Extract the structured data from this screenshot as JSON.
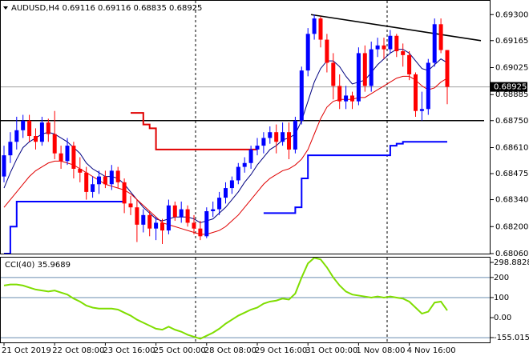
{
  "chart_data": [
    {
      "type": "candlestick",
      "title": "AUDUSD,H4  0.69116 0.69116 0.68835 0.68925",
      "categories": [
        "21 Oct 2019",
        null,
        null,
        null,
        null,
        null,
        null,
        null,
        "22 Oct 08:00",
        null,
        null,
        null,
        null,
        null,
        null,
        null,
        "23 Oct 16:00",
        null,
        null,
        null,
        null,
        null,
        null,
        null,
        "25 Oct 00:00",
        null,
        null,
        null,
        null,
        null,
        null,
        null,
        "28 Oct 08:00",
        null,
        null,
        null,
        null,
        null,
        null,
        null,
        "29 Oct 16:00",
        null,
        null,
        null,
        null,
        null,
        null,
        null,
        "31 Oct 00:00",
        null,
        null,
        null,
        null,
        null,
        null,
        null,
        "1 Nov 08:00",
        null,
        null,
        null,
        null,
        null,
        null,
        null,
        "4 Nov 16:00",
        null,
        null,
        null,
        null,
        null,
        null
      ],
      "open": [
        0.6846,
        0.6857,
        0.6864,
        0.687,
        0.6875,
        0.6867,
        0.6864,
        0.6874,
        0.6868,
        0.6858,
        0.6854,
        0.6862,
        0.685,
        0.6848,
        0.6838,
        0.6842,
        0.6846,
        0.6842,
        0.6849,
        0.6843,
        0.6832,
        0.683,
        0.6821,
        0.6826,
        0.6819,
        0.6822,
        0.6818,
        0.6831,
        0.6825,
        0.6829,
        0.6822,
        0.6819,
        0.6815,
        0.6828,
        0.6829,
        0.6835,
        0.684,
        0.6844,
        0.6851,
        0.6853,
        0.686,
        0.6862,
        0.6866,
        0.6869,
        0.6864,
        0.6869,
        0.686,
        0.6875,
        0.6901,
        0.692,
        0.6928,
        0.6917,
        0.6905,
        0.6893,
        0.6885,
        0.6888,
        0.6885,
        0.691,
        0.6893,
        0.6912,
        0.6914,
        0.6912,
        0.6919,
        0.6911,
        0.6909,
        0.6899,
        0.688,
        0.6881,
        0.6905,
        0.6925,
        0.69116
      ],
      "high": [
        0.6862,
        0.6869,
        0.6877,
        0.6878,
        0.6878,
        0.6871,
        0.6877,
        0.6876,
        0.688,
        0.6862,
        0.6866,
        0.6864,
        0.6856,
        0.6851,
        0.6846,
        0.6849,
        0.6849,
        0.6852,
        0.6851,
        0.6845,
        0.6836,
        0.6834,
        0.6829,
        0.6828,
        0.6825,
        0.6824,
        0.6834,
        0.6833,
        0.6833,
        0.6831,
        0.6826,
        0.6823,
        0.683,
        0.6833,
        0.6838,
        0.6843,
        0.6846,
        0.6853,
        0.6856,
        0.6862,
        0.6866,
        0.6869,
        0.6872,
        0.6873,
        0.6874,
        0.6874,
        0.6877,
        0.6903,
        0.6923,
        0.693,
        0.6929,
        0.692,
        0.691,
        0.6899,
        0.6893,
        0.689,
        0.6913,
        0.6914,
        0.6916,
        0.6918,
        0.6918,
        0.6922,
        0.692,
        0.6915,
        0.6911,
        0.69,
        0.689,
        0.6907,
        0.6928,
        0.6928,
        0.69116
      ],
      "low": [
        0.6843,
        0.6853,
        0.686,
        0.6866,
        0.6864,
        0.686,
        0.6862,
        0.6864,
        0.6855,
        0.685,
        0.6852,
        0.6845,
        0.6843,
        0.6834,
        0.6835,
        0.6837,
        0.684,
        0.6839,
        0.684,
        0.6827,
        0.6826,
        0.6812,
        0.6817,
        0.6815,
        0.6813,
        0.6811,
        0.6816,
        0.6823,
        0.6822,
        0.682,
        0.6816,
        0.6813,
        0.6814,
        0.6825,
        0.6826,
        0.6832,
        0.6837,
        0.6842,
        0.6848,
        0.685,
        0.6857,
        0.6858,
        0.6863,
        0.6858,
        0.6862,
        0.6855,
        0.6858,
        0.6873,
        0.6898,
        0.6917,
        0.6913,
        0.69,
        0.6886,
        0.6881,
        0.6881,
        0.6881,
        0.6883,
        0.689,
        0.689,
        0.6908,
        0.6907,
        0.691,
        0.6908,
        0.6903,
        0.6896,
        0.6877,
        0.6875,
        0.6878,
        0.6903,
        0.691,
        0.68835
      ],
      "close": [
        0.6857,
        0.6864,
        0.687,
        0.6875,
        0.6867,
        0.6864,
        0.6874,
        0.6868,
        0.6858,
        0.6854,
        0.6862,
        0.685,
        0.6848,
        0.6838,
        0.6842,
        0.6846,
        0.6842,
        0.6849,
        0.6843,
        0.6832,
        0.683,
        0.6821,
        0.6826,
        0.6819,
        0.6822,
        0.6818,
        0.6831,
        0.6825,
        0.6829,
        0.6822,
        0.6819,
        0.6815,
        0.6828,
        0.6829,
        0.6835,
        0.684,
        0.6844,
        0.6851,
        0.6853,
        0.686,
        0.6862,
        0.6866,
        0.6869,
        0.6864,
        0.6869,
        0.686,
        0.6875,
        0.6901,
        0.692,
        0.6928,
        0.6917,
        0.6905,
        0.6893,
        0.6885,
        0.6888,
        0.6885,
        0.691,
        0.6893,
        0.6912,
        0.6914,
        0.6912,
        0.6919,
        0.6911,
        0.6909,
        0.6899,
        0.688,
        0.6881,
        0.6905,
        0.6925,
        0.69116,
        0.68925
      ],
      "up_color": "#0000ff",
      "down_color": "#ff0000",
      "lines": [
        {
          "color": "#000080",
          "values": [
            0.684,
            0.6848,
            0.6855,
            0.6861,
            0.6864,
            0.6866,
            0.6868,
            0.6869,
            0.6868,
            0.6866,
            0.6864,
            0.6861,
            0.6858,
            0.6853,
            0.685,
            0.6848,
            0.6846,
            0.6846,
            0.6845,
            0.6842,
            0.6838,
            0.6834,
            0.683,
            0.6827,
            0.6824,
            0.6823,
            0.6824,
            0.6825,
            0.6825,
            0.6825,
            0.6824,
            0.6822,
            0.6823,
            0.6824,
            0.6827,
            0.683,
            0.6834,
            0.6838,
            0.6843,
            0.6847,
            0.6852,
            0.6856,
            0.686,
            0.6862,
            0.6865,
            0.6866,
            0.6868,
            0.6875,
            0.6885,
            0.6895,
            0.6902,
            0.6906,
            0.6906,
            0.6903,
            0.6898,
            0.6894,
            0.6895,
            0.6896,
            0.69,
            0.6904,
            0.6907,
            0.691,
            0.6912,
            0.6912,
            0.691,
            0.6906,
            0.6902,
            0.6901,
            0.6904,
            0.6907,
            0.6905
          ]
        },
        {
          "color": "#e00000",
          "values": [
            0.683,
            0.6834,
            0.6838,
            0.6842,
            0.6846,
            0.6849,
            0.6851,
            0.6853,
            0.6854,
            0.6854,
            0.6853,
            0.6852,
            0.685,
            0.6848,
            0.6846,
            0.6844,
            0.6842,
            0.6841,
            0.684,
            0.6839,
            0.6837,
            0.6834,
            0.6831,
            0.6828,
            0.6825,
            0.6822,
            0.6821,
            0.682,
            0.6819,
            0.6818,
            0.6817,
            0.6816,
            0.6816,
            0.6817,
            0.6818,
            0.682,
            0.6823,
            0.6826,
            0.683,
            0.6834,
            0.6838,
            0.6842,
            0.6845,
            0.6847,
            0.6849,
            0.685,
            0.6852,
            0.6855,
            0.686,
            0.6868,
            0.6876,
            0.6882,
            0.6885,
            0.6886,
            0.6886,
            0.6886,
            0.6887,
            0.6887,
            0.6889,
            0.6891,
            0.6893,
            0.6895,
            0.6897,
            0.6898,
            0.6898,
            0.6896,
            0.6893,
            0.6891,
            0.6892,
            0.6895,
            0.6897
          ]
        },
        {
          "color": "#0000ff",
          "step": true,
          "values": [
            0.6806,
            0.682,
            0.6833,
            0.6833,
            0.6833,
            0.6833,
            0.6833,
            0.6833,
            0.6833,
            0.6833,
            0.6833,
            0.6833,
            0.6833,
            0.6833,
            0.6833,
            0.6833,
            0.6833,
            0.6833,
            0.6833,
            0.6833,
            null,
            null,
            null,
            null,
            null,
            null,
            null,
            null,
            null,
            null,
            null,
            null,
            null,
            null,
            null,
            null,
            null,
            null,
            null,
            null,
            null,
            0.6827,
            0.6827,
            0.6827,
            0.6827,
            0.6827,
            0.683,
            0.6845,
            0.6857,
            0.6857,
            0.6857,
            0.6857,
            0.6857,
            0.6857,
            0.6857,
            0.6857,
            0.6857,
            0.6857,
            0.6857,
            0.6857,
            0.6857,
            0.6862,
            0.6863,
            0.6864,
            0.6864,
            0.6864,
            0.6864,
            0.6864,
            0.6864,
            0.6864,
            0.6864
          ]
        },
        {
          "color": "#e00000",
          "step": true,
          "values": [
            null,
            null,
            null,
            null,
            null,
            null,
            null,
            null,
            null,
            null,
            null,
            null,
            null,
            null,
            null,
            null,
            null,
            null,
            null,
            null,
            0.6879,
            0.6879,
            0.6873,
            0.6871,
            0.686,
            0.686,
            0.686,
            0.686,
            0.686,
            0.686,
            0.686,
            0.686,
            0.686,
            0.686,
            0.686,
            0.686,
            0.686,
            0.686,
            0.686,
            0.686,
            0.686,
            null,
            null,
            null,
            null,
            null,
            null,
            null,
            null,
            null,
            null,
            null,
            null,
            null,
            null,
            null,
            null,
            null,
            null,
            null,
            null,
            null,
            null,
            null,
            null,
            null,
            null,
            null,
            null,
            null,
            null
          ]
        }
      ],
      "trendlines": [
        {
          "color": "#000000",
          "values": [
            0.6875,
            0.6875
          ]
        },
        {
          "color": "#000000",
          "values": [
            0.693,
            0.69165
          ]
        }
      ],
      "current_price": 0.68925,
      "ylim": [
        0.6806,
        0.69355
      ],
      "yticks": [
        {
          "value": 0.693,
          "label": "0.69300"
        },
        {
          "value": 0.69165,
          "label": "0.69165"
        },
        {
          "value": 0.69025,
          "label": "0.69025"
        },
        {
          "value": 0.68885,
          "label": "0.68885"
        },
        {
          "value": 0.6875,
          "label": "0.68750"
        },
        {
          "value": 0.6861,
          "label": "0.68610"
        },
        {
          "value": 0.68475,
          "label": "0.68475"
        },
        {
          "value": 0.6834,
          "label": "0.68340"
        },
        {
          "value": 0.682,
          "label": "0.68200"
        },
        {
          "value": 0.6806,
          "label": "0.68060"
        }
      ]
    },
    {
      "type": "line",
      "title": "CCI(40) 35.9689",
      "values": [
        160,
        165,
        165,
        160,
        150,
        140,
        135,
        130,
        135,
        125,
        115,
        95,
        80,
        60,
        50,
        45,
        45,
        45,
        40,
        25,
        10,
        -10,
        -25,
        -40,
        -55,
        -60,
        -45,
        -60,
        -70,
        -85,
        -95,
        -105,
        -90,
        -75,
        -55,
        -30,
        -10,
        10,
        25,
        40,
        50,
        70,
        80,
        85,
        95,
        90,
        120,
        200,
        270,
        298,
        290,
        250,
        200,
        160,
        130,
        115,
        110,
        105,
        100,
        105,
        100,
        105,
        100,
        95,
        80,
        50,
        20,
        30,
        75,
        80,
        35.9689
      ],
      "color": "#7fdd00",
      "ylim": [
        -155.0156,
        298.8828
      ],
      "yticks": [
        298.8828,
        200,
        100,
        {
          "value": 0,
          "label": "0.00"
        },
        -155.0156
      ],
      "levels": [
        200,
        100,
        -100
      ],
      "level_color": "#6a8caf"
    }
  ]
}
